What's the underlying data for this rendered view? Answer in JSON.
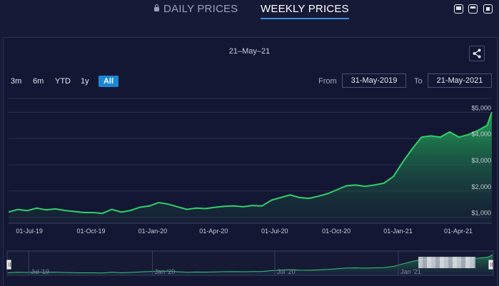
{
  "tabs": {
    "daily_label": "DAILY PRICES",
    "weekly_label": "WEEKLY PRICES",
    "active": "WEEKLY PRICES"
  },
  "window_controls": [
    "minimize-icon",
    "restore-icon",
    "delete-icon"
  ],
  "chart_header": {
    "date_title": "21–May–21"
  },
  "range_buttons": [
    "3m",
    "6m",
    "YTD",
    "1y",
    "All"
  ],
  "range_active": "All",
  "date_range": {
    "from_label": "From",
    "from_value": "31-May-2019",
    "to_label": "To",
    "to_value": "21-May-2021"
  },
  "colors": {
    "background": "#171a36",
    "line": "#2fd16a",
    "area_top": "#22a85a",
    "accent": "#1a86d9"
  },
  "chart_data": {
    "type": "area",
    "title": "",
    "xlabel": "",
    "ylabel": "",
    "y_tick_labels": [
      "$1,000",
      "$2,000",
      "$3,000",
      "$4,000",
      "$5,000"
    ],
    "y_ticks": [
      1000,
      2000,
      3000,
      4000,
      5000
    ],
    "ylim": [
      800,
      5200
    ],
    "x_tick_labels": [
      "01-Jul-19",
      "01-Oct-19",
      "01-Jan-20",
      "01-Apr-20",
      "01-Jul-20",
      "01-Oct-20",
      "01-Jan-21",
      "01-Apr-21"
    ],
    "x_tick_dates": [
      "2019-07-01",
      "2019-10-01",
      "2020-01-01",
      "2020-04-01",
      "2020-07-01",
      "2020-10-01",
      "2021-01-01",
      "2021-04-01"
    ],
    "xlim": [
      "2019-05-31",
      "2021-05-21"
    ],
    "grid": true,
    "series": [
      {
        "x": [
          "2019-05-31",
          "2019-06-14",
          "2019-06-28",
          "2019-07-12",
          "2019-07-26",
          "2019-08-09",
          "2019-08-23",
          "2019-09-06",
          "2019-09-20",
          "2019-10-04",
          "2019-10-18",
          "2019-11-01",
          "2019-11-15",
          "2019-11-29",
          "2019-12-13",
          "2019-12-27",
          "2020-01-10",
          "2020-01-24",
          "2020-02-07",
          "2020-02-21",
          "2020-03-06",
          "2020-03-20",
          "2020-04-03",
          "2020-04-17",
          "2020-05-01",
          "2020-05-15",
          "2020-05-29",
          "2020-06-12",
          "2020-06-26",
          "2020-07-10",
          "2020-07-24",
          "2020-08-07",
          "2020-08-21",
          "2020-09-04",
          "2020-09-18",
          "2020-10-02",
          "2020-10-16",
          "2020-10-30",
          "2020-11-13",
          "2020-11-27",
          "2020-12-11",
          "2020-12-25",
          "2021-01-08",
          "2021-01-22",
          "2021-02-05",
          "2021-02-19",
          "2021-03-05",
          "2021-03-19",
          "2021-04-02",
          "2021-04-16",
          "2021-04-30",
          "2021-05-14",
          "2021-05-21"
        ],
        "y": [
          1200,
          1300,
          1250,
          1350,
          1280,
          1320,
          1260,
          1220,
          1180,
          1180,
          1150,
          1300,
          1200,
          1260,
          1380,
          1430,
          1560,
          1500,
          1400,
          1300,
          1350,
          1330,
          1380,
          1420,
          1430,
          1400,
          1450,
          1430,
          1650,
          1750,
          1850,
          1750,
          1720,
          1800,
          1900,
          2050,
          2200,
          2230,
          2180,
          2230,
          2300,
          2550,
          3100,
          3600,
          4050,
          4100,
          4050,
          4250,
          4050,
          4150,
          4300,
          4500,
          5000
        ]
      }
    ]
  },
  "navigator": {
    "labels": [
      "Jul '19",
      "Jan '20",
      "Jul '20",
      "Jan '21"
    ]
  }
}
